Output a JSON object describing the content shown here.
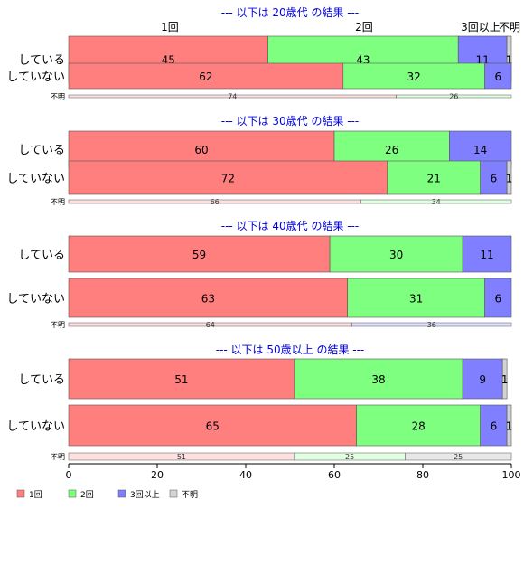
{
  "chart_data": {
    "type": "bar",
    "orientation": "horizontal",
    "stacked": true,
    "xlim": [
      0,
      100
    ],
    "x_ticks": [
      "0",
      "20",
      "40",
      "60",
      "80",
      "100"
    ],
    "column_headers": [
      "1回",
      "2回",
      "3回以上",
      "不明"
    ],
    "legend": {
      "placement": "bottom-left",
      "items": [
        "1回",
        "2回",
        "3回以上",
        "不明"
      ]
    },
    "colors": {
      "1回": "#ff7f7f",
      "2回": "#7fff7f",
      "3回以上": "#7f7fff",
      "不明": "#d3d3d3",
      "title": "#0000dd"
    },
    "panels": [
      {
        "title": "--- 以下は 20歳代 の結果 ---",
        "rows": [
          {
            "label": "している",
            "values": [
              45,
              43,
              11,
              1
            ]
          },
          {
            "label": "していない",
            "values": [
              62,
              32,
              6,
              0
            ]
          }
        ],
        "unknown": {
          "label": "不明",
          "values": [
            74,
            26,
            0,
            0
          ]
        }
      },
      {
        "title": "--- 以下は 30歳代 の結果 ---",
        "rows": [
          {
            "label": "している",
            "values": [
              60,
              26,
              14,
              0
            ]
          },
          {
            "label": "していない",
            "values": [
              72,
              21,
              6,
              1
            ]
          }
        ],
        "unknown": {
          "label": "不明",
          "values": [
            66,
            34,
            0,
            0
          ]
        }
      },
      {
        "title": "--- 以下は 40歳代 の結果 ---",
        "rows": [
          {
            "label": "している",
            "values": [
              59,
              30,
              11,
              0
            ]
          },
          {
            "label": "していない",
            "values": [
              63,
              31,
              6,
              0
            ]
          }
        ],
        "unknown": {
          "label": "不明",
          "values": [
            64,
            0,
            36,
            0
          ]
        }
      },
      {
        "title": "--- 以下は 50歳以上 の結果 ---",
        "rows": [
          {
            "label": "している",
            "values": [
              51,
              38,
              9,
              1
            ]
          },
          {
            "label": "していない",
            "values": [
              65,
              28,
              6,
              1
            ]
          }
        ],
        "unknown": {
          "label": "不明",
          "values": [
            51,
            25,
            0,
            25
          ]
        }
      }
    ]
  }
}
